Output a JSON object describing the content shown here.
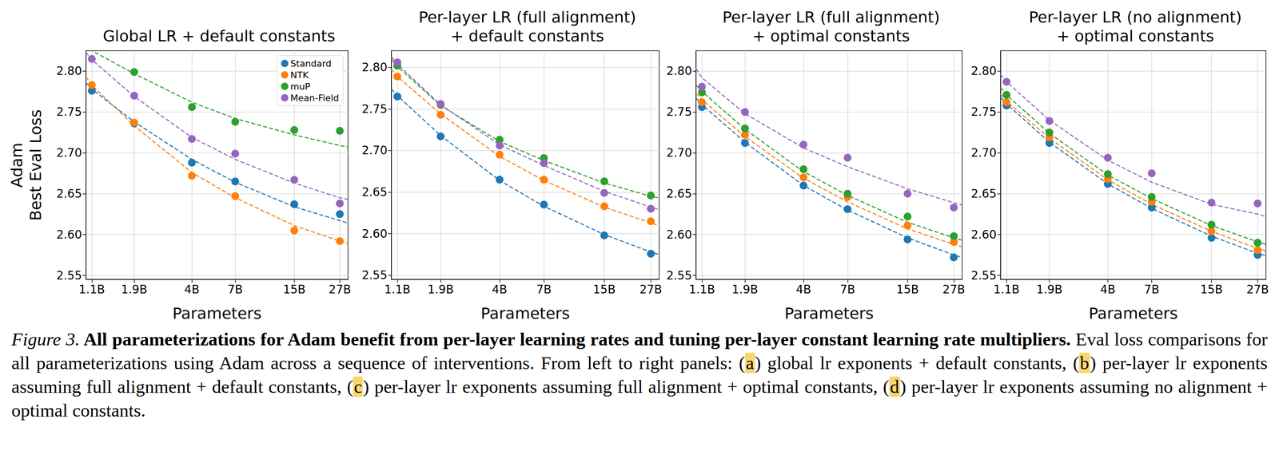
{
  "chart_data": [
    {
      "type": "scatter",
      "title": "Global LR + default constants",
      "xlabel": "Parameters",
      "ylabel": "Adam\nBest Eval Loss",
      "log": "x",
      "grid": true,
      "legend": "upper right",
      "marker": "circle",
      "xlim": [
        1.02,
        30
      ],
      "xticks": [
        {
          "value": 1.1,
          "label": "1.1B"
        },
        {
          "value": 1.9,
          "label": "1.9B"
        },
        {
          "value": 4,
          "label": "4B"
        },
        {
          "value": 7,
          "label": "7B"
        },
        {
          "value": 15,
          "label": "15B"
        },
        {
          "value": 27,
          "label": "27B"
        }
      ],
      "ylim": [
        2.545,
        2.825
      ],
      "yticks": [
        2.55,
        {
          "value": 2.6,
          "label": "2.60"
        },
        2.65,
        {
          "value": 2.7,
          "label": "2.70"
        },
        2.75,
        {
          "value": 2.8,
          "label": "2.80"
        }
      ],
      "x": [
        1.1,
        1.9,
        4,
        7,
        15,
        27
      ],
      "fit_x": [
        1.02,
        1.1,
        1.9,
        4,
        7,
        15,
        27,
        30
      ],
      "series": [
        {
          "name": "Standard",
          "color": "#1f77b4",
          "values": [
            2.776,
            2.736,
            2.688,
            2.665,
            2.637,
            2.625
          ],
          "fit": {
            "values": [
              2.786,
              2.778,
              2.738,
              2.692,
              2.664,
              2.634,
              2.617,
              2.614
            ],
            "line_style": "dashed"
          }
        },
        {
          "name": "NTK",
          "color": "#ff7f0e",
          "values": [
            2.783,
            2.737,
            2.672,
            2.647,
            2.605,
            2.592
          ],
          "fit": {
            "values": [
              2.793,
              2.783,
              2.733,
              2.676,
              2.645,
              2.611,
              2.592,
              2.589
            ],
            "line_style": "dashed"
          }
        },
        {
          "name": "muP",
          "color": "#2ca02c",
          "values": [
            null,
            2.799,
            2.756,
            2.738,
            2.728,
            2.727
          ],
          "fit": {
            "values": [
              2.833,
              2.825,
              2.797,
              2.762,
              2.742,
              2.722,
              2.709,
              2.707
            ],
            "line_style": "dashed"
          }
        },
        {
          "name": "Mean-Field",
          "color": "#9467bd",
          "values": [
            2.815,
            2.77,
            2.717,
            2.699,
            2.667,
            2.638
          ],
          "fit": {
            "values": [
              2.823,
              2.814,
              2.769,
              2.719,
              2.692,
              2.663,
              2.645,
              2.643
            ],
            "line_style": "dashed"
          }
        }
      ]
    },
    {
      "type": "scatter",
      "title": "Per-layer LR (full alignment)\n+ default constants",
      "xlabel": "Parameters",
      "log": "x",
      "grid": true,
      "marker": "circle",
      "xlim": [
        1.02,
        30
      ],
      "xticks": [
        {
          "value": 1.1,
          "label": "1.1B"
        },
        {
          "value": 1.9,
          "label": "1.9B"
        },
        {
          "value": 4,
          "label": "4B"
        },
        {
          "value": 7,
          "label": "7B"
        },
        {
          "value": 15,
          "label": "15B"
        },
        {
          "value": 27,
          "label": "27B"
        }
      ],
      "ylim": [
        2.545,
        2.82
      ],
      "yticks": [
        2.55,
        {
          "value": 2.6,
          "label": "2.60"
        },
        2.65,
        {
          "value": 2.7,
          "label": "2.70"
        },
        2.75,
        {
          "value": 2.8,
          "label": "2.80"
        }
      ],
      "x": [
        1.1,
        1.9,
        4,
        7,
        15,
        27
      ],
      "fit_x": [
        1.02,
        1.1,
        1.9,
        4,
        7,
        15,
        27,
        30
      ],
      "series": [
        {
          "name": "Standard",
          "color": "#1f77b4",
          "values": [
            2.765,
            2.717,
            2.665,
            2.635,
            2.598,
            2.576
          ],
          "fit": {
            "values": [
              2.774,
              2.766,
              2.718,
              2.664,
              2.633,
              2.599,
              2.578,
              2.575
            ],
            "line_style": "dashed"
          }
        },
        {
          "name": "NTK",
          "color": "#ff7f0e",
          "values": [
            2.789,
            2.743,
            2.695,
            2.665,
            2.633,
            2.615
          ],
          "fit": {
            "values": [
              2.798,
              2.789,
              2.744,
              2.693,
              2.664,
              2.632,
              2.613,
              2.61
            ],
            "line_style": "dashed"
          }
        },
        {
          "name": "muP",
          "color": "#2ca02c",
          "values": [
            2.802,
            2.755,
            2.713,
            2.691,
            2.663,
            2.646
          ],
          "fit": {
            "values": [
              2.81,
              2.801,
              2.754,
              2.711,
              2.688,
              2.661,
              2.645,
              2.643
            ],
            "line_style": "dashed"
          }
        },
        {
          "name": "Mean-Field",
          "color": "#9467bd",
          "values": [
            2.806,
            2.756,
            2.706,
            2.685,
            2.649,
            2.63
          ],
          "fit": {
            "values": [
              2.813,
              2.804,
              2.755,
              2.707,
              2.682,
              2.651,
              2.632,
              2.629
            ],
            "line_style": "dashed"
          }
        }
      ]
    },
    {
      "type": "scatter",
      "title": "Per-layer LR (full alignment)\n+ optimal constants",
      "xlabel": "Parameters",
      "log": "x",
      "grid": true,
      "marker": "circle",
      "xlim": [
        1.02,
        30
      ],
      "xticks": [
        {
          "value": 1.1,
          "label": "1.1B"
        },
        {
          "value": 1.9,
          "label": "1.9B"
        },
        {
          "value": 4,
          "label": "4B"
        },
        {
          "value": 7,
          "label": "7B"
        },
        {
          "value": 15,
          "label": "15B"
        },
        {
          "value": 27,
          "label": "27B"
        }
      ],
      "ylim": [
        2.545,
        2.825
      ],
      "yticks": [
        2.55,
        {
          "value": 2.6,
          "label": "2.60"
        },
        2.65,
        {
          "value": 2.7,
          "label": "2.70"
        },
        2.75,
        {
          "value": 2.8,
          "label": "2.80"
        }
      ],
      "x": [
        1.1,
        1.9,
        4,
        7,
        15,
        27
      ],
      "fit_x": [
        1.02,
        1.1,
        1.9,
        4,
        7,
        15,
        27,
        30
      ],
      "series": [
        {
          "name": "Standard",
          "color": "#1f77b4",
          "values": [
            2.756,
            2.712,
            2.66,
            2.631,
            2.594,
            2.572
          ],
          "fit": {
            "values": [
              2.767,
              2.759,
              2.713,
              2.66,
              2.63,
              2.596,
              2.575,
              2.572
            ],
            "line_style": "dashed"
          }
        },
        {
          "name": "NTK",
          "color": "#ff7f0e",
          "values": [
            2.762,
            2.722,
            2.67,
            2.646,
            2.611,
            2.591
          ],
          "fit": {
            "values": [
              2.773,
              2.765,
              2.72,
              2.669,
              2.64,
              2.607,
              2.588,
              2.585
            ],
            "line_style": "dashed"
          }
        },
        {
          "name": "muP",
          "color": "#2ca02c",
          "values": [
            2.774,
            2.73,
            2.68,
            2.65,
            2.622,
            2.598
          ],
          "fit": {
            "values": [
              2.783,
              2.775,
              2.729,
              2.677,
              2.648,
              2.615,
              2.596,
              2.593
            ],
            "line_style": "dashed"
          }
        },
        {
          "name": "Mean-Field",
          "color": "#9467bd",
          "values": [
            2.781,
            2.75,
            2.71,
            2.694,
            2.65,
            2.633
          ],
          "fit": {
            "values": [
              2.803,
              2.792,
              2.748,
              2.706,
              2.683,
              2.656,
              2.639,
              2.636
            ],
            "line_style": "dashed"
          }
        }
      ]
    },
    {
      "type": "scatter",
      "title": "Per-layer LR (no alignment)\n+ optimal constants",
      "xlabel": "Parameters",
      "log": "x",
      "grid": true,
      "marker": "circle",
      "xlim": [
        1.02,
        30
      ],
      "xticks": [
        {
          "value": 1.1,
          "label": "1.1B"
        },
        {
          "value": 1.9,
          "label": "1.9B"
        },
        {
          "value": 4,
          "label": "4B"
        },
        {
          "value": 7,
          "label": "7B"
        },
        {
          "value": 15,
          "label": "15B"
        },
        {
          "value": 27,
          "label": "27B"
        }
      ],
      "ylim": [
        2.545,
        2.825
      ],
      "yticks": [
        2.55,
        {
          "value": 2.6,
          "label": "2.60"
        },
        2.65,
        {
          "value": 2.7,
          "label": "2.70"
        },
        2.75,
        {
          "value": 2.8,
          "label": "2.80"
        }
      ],
      "x": [
        1.1,
        1.9,
        4,
        7,
        15,
        27
      ],
      "fit_x": [
        1.02,
        1.1,
        1.9,
        4,
        7,
        15,
        27,
        30
      ],
      "series": [
        {
          "name": "Standard",
          "color": "#1f77b4",
          "values": [
            2.758,
            2.712,
            2.662,
            2.633,
            2.596,
            2.575
          ],
          "fit": {
            "values": [
              2.768,
              2.76,
              2.713,
              2.662,
              2.632,
              2.598,
              2.577,
              2.574
            ],
            "line_style": "dashed"
          }
        },
        {
          "name": "NTK",
          "color": "#ff7f0e",
          "values": [
            2.762,
            2.719,
            2.668,
            2.64,
            2.604,
            2.581
          ],
          "fit": {
            "values": [
              2.772,
              2.763,
              2.718,
              2.667,
              2.637,
              2.604,
              2.583,
              2.58
            ],
            "line_style": "dashed"
          }
        },
        {
          "name": "muP",
          "color": "#2ca02c",
          "values": [
            2.771,
            2.725,
            2.674,
            2.646,
            2.612,
            2.59
          ],
          "fit": {
            "values": [
              2.78,
              2.771,
              2.724,
              2.673,
              2.644,
              2.611,
              2.591,
              2.588
            ],
            "line_style": "dashed"
          }
        },
        {
          "name": "Mean-Field",
          "color": "#9467bd",
          "values": [
            2.787,
            2.739,
            2.694,
            2.675,
            2.639,
            2.638
          ],
          "fit": {
            "values": [
              2.796,
              2.787,
              2.74,
              2.691,
              2.664,
              2.637,
              2.625,
              2.622
            ],
            "line_style": "dashed"
          }
        }
      ]
    }
  ],
  "caption": [
    {
      "text": "Figure 3.",
      "italic": true
    },
    {
      "text": " All parameterizations for Adam benefit from per-layer learning rates and tuning per-layer constant learning rate multipliers.",
      "bold": true
    },
    {
      "text": " Eval loss comparisons for all parameterizations using Adam across a sequence of interventions. From left to right panels: ("
    },
    {
      "text": "a",
      "highlight": true
    },
    {
      "text": ") global lr exponents + default constants, ("
    },
    {
      "text": "b",
      "highlight": true
    },
    {
      "text": ") per-layer lr exponents assuming full alignment + default constants, ("
    },
    {
      "text": "c",
      "highlight": true
    },
    {
      "text": ") per-layer lr exponents assuming full alignment + optimal constants, ("
    },
    {
      "text": "d",
      "highlight": true
    },
    {
      "text": ") per-layer lr exponents assuming no alignment + optimal constants."
    }
  ]
}
